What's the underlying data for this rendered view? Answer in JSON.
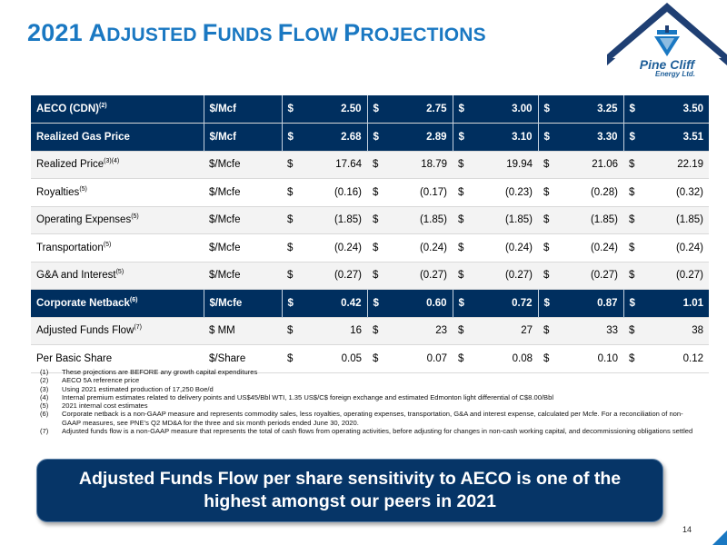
{
  "title": {
    "parts": [
      {
        "text": "2021 ",
        "sc": false
      },
      {
        "text": "A",
        "sc": false
      },
      {
        "text": "DJUSTED ",
        "sc": true
      },
      {
        "text": "F",
        "sc": false
      },
      {
        "text": "UNDS ",
        "sc": true
      },
      {
        "text": "F",
        "sc": false
      },
      {
        "text": "LOW ",
        "sc": true
      },
      {
        "text": "P",
        "sc": false
      },
      {
        "text": "ROJECTIONS",
        "sc": true
      }
    ]
  },
  "logo": {
    "name": "Pine Cliff",
    "sub": "Energy Ltd.",
    "colors": {
      "navy": "#1f3f73",
      "blue": "#1a78c2"
    }
  },
  "colors": {
    "header_blue": "#002f5f",
    "title_blue": "#1a78c2",
    "banner": "#063567"
  },
  "table": {
    "rows": [
      {
        "label": "AECO (CDN)",
        "sup": "(2)",
        "unit": "$/Mcf",
        "style": "dark",
        "values": [
          "2.50",
          "2.75",
          "3.00",
          "3.25",
          "3.50"
        ]
      },
      {
        "label": "Realized Gas Price",
        "sup": "",
        "unit": "$/Mcf",
        "style": "dark",
        "values": [
          "2.68",
          "2.89",
          "3.10",
          "3.30",
          "3.51"
        ]
      },
      {
        "label": "Realized Price",
        "sup": "(3)(4)",
        "unit": "$/Mcfe",
        "style": "light",
        "values": [
          "17.64",
          "18.79",
          "19.94",
          "21.06",
          "22.19"
        ]
      },
      {
        "label": "Royalties",
        "sup": "(5)",
        "unit": "$/Mcfe",
        "style": "white",
        "values": [
          "(0.16)",
          "(0.17)",
          "(0.23)",
          "(0.28)",
          "(0.32)"
        ]
      },
      {
        "label": "Operating Expenses",
        "sup": "(5)",
        "unit": "$/Mcfe",
        "style": "light",
        "values": [
          "(1.85)",
          "(1.85)",
          "(1.85)",
          "(1.85)",
          "(1.85)"
        ]
      },
      {
        "label": "Transportation",
        "sup": "(5)",
        "unit": "$/Mcfe",
        "style": "white",
        "values": [
          "(0.24)",
          "(0.24)",
          "(0.24)",
          "(0.24)",
          "(0.24)"
        ]
      },
      {
        "label": "G&A and Interest",
        "sup": "(5)",
        "unit": "$/Mcfe",
        "style": "light",
        "values": [
          "(0.27)",
          "(0.27)",
          "(0.27)",
          "(0.27)",
          "(0.27)"
        ]
      },
      {
        "label": "Corporate Netback",
        "sup": "(6)",
        "unit": "$/Mcfe",
        "style": "dark",
        "values": [
          "0.42",
          "0.60",
          "0.72",
          "0.87",
          "1.01"
        ]
      },
      {
        "label": "Adjusted Funds Flow",
        "sup": "(7)",
        "unit": "$ MM",
        "style": "light",
        "values": [
          "16",
          "23",
          "27",
          "33",
          "38"
        ]
      },
      {
        "label": "Per Basic Share",
        "sup": "",
        "unit": "$/Share",
        "style": "white",
        "values": [
          "0.05",
          "0.07",
          "0.08",
          "0.10",
          "0.12"
        ]
      }
    ],
    "currency_symbol": "$"
  },
  "notes": [
    {
      "n": "(1)",
      "text": "These projections are BEFORE any growth capital expenditures"
    },
    {
      "n": "(2)",
      "text": "AECO 5A reference price"
    },
    {
      "n": "(3)",
      "text": "Using 2021 estimated production of 17,250 Boe/d"
    },
    {
      "n": "(4)",
      "text": "Internal premium estimates related to delivery points and US$45/Bbl WTI, 1.35 US$/C$ foreign exchange and estimated Edmonton light differential of C$8.00/Bbl"
    },
    {
      "n": "(5)",
      "text": "2021 internal cost estimates"
    },
    {
      "n": "(6)",
      "text": "Corporate netback is a non-GAAP measure and represents commodity sales, less royalties, operating expenses, transportation, G&A and interest expense, calculated per Mcfe.   For a reconciliation of non-GAAP measures, see PNE’s Q2 MD&A for the three and six month periods ended June 30, 2020."
    },
    {
      "n": "(7)",
      "text": "Adjusted funds flow is a non-GAAP measure that represents the total of cash flows from operating activities, before adjusting for changes in non-cash working capital, and decommissioning obligations settled"
    }
  ],
  "banner": {
    "text": "Adjusted Funds Flow per share sensitivity to AECO is one of the highest amongst our peers in 2021"
  },
  "page_number": "14"
}
